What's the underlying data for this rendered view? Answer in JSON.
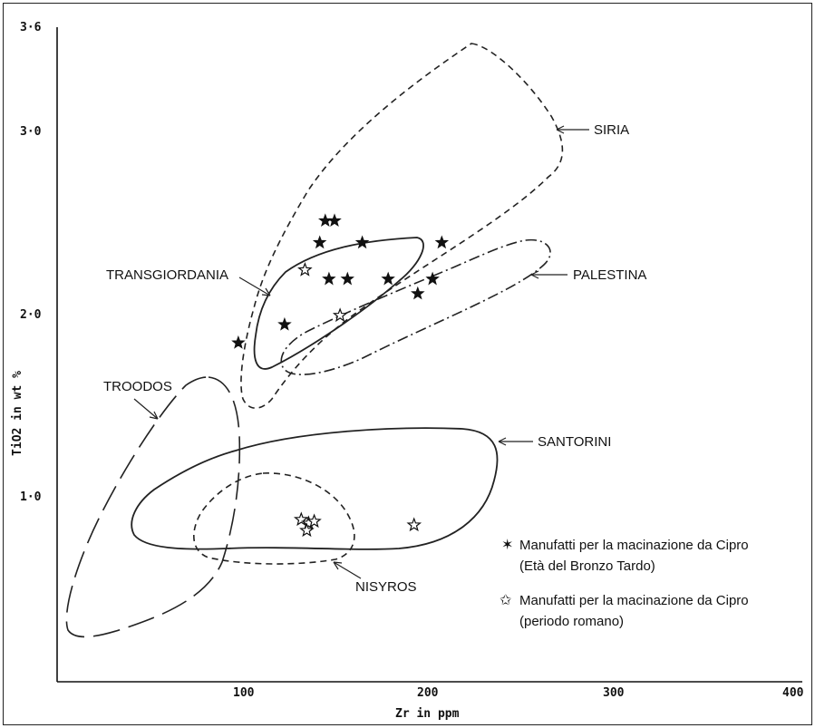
{
  "chart_data": {
    "type": "scatter",
    "xlabel": "Zr in ppm",
    "ylabel": "TiO2 in wt %",
    "xlim": [
      0,
      400
    ],
    "ylim": [
      0,
      3.6
    ],
    "x_ticks": [
      "100",
      "200",
      "300",
      "400"
    ],
    "y_ticks": [
      "1·0",
      "2·0",
      "3·0",
      "3·6"
    ],
    "y_tick_values": [
      1.0,
      2.0,
      3.0,
      3.6
    ],
    "x_tick_values": [
      100,
      200,
      300,
      400
    ],
    "regions": [
      {
        "label": "SIRIA",
        "line_style": "dashed"
      },
      {
        "label": "PALESTINA",
        "line_style": "dash-dot"
      },
      {
        "label": "TRANSGIORDANIA",
        "line_style": "solid"
      },
      {
        "label": "TROODOS",
        "line_style": "long-dash"
      },
      {
        "label": "SANTORINI",
        "line_style": "solid"
      },
      {
        "label": "NISYROS",
        "line_style": "dashed"
      }
    ],
    "series": [
      {
        "name": "Manufatti per la macinazione da Cipro (Età del Bronzo Tardo)",
        "marker": "filled-star",
        "points": [
          [
            145,
            2.53
          ],
          [
            150,
            2.53
          ],
          [
            142,
            2.41
          ],
          [
            165,
            2.41
          ],
          [
            208,
            2.41
          ],
          [
            147,
            2.21
          ],
          [
            157,
            2.21
          ],
          [
            179,
            2.21
          ],
          [
            203,
            2.21
          ],
          [
            195,
            2.13
          ],
          [
            123,
            1.96
          ],
          [
            98,
            1.86
          ]
        ]
      },
      {
        "name": "Manufatti per la macinazione da Cipro (periodo romano)",
        "marker": "open-star",
        "points": [
          [
            134,
            2.26
          ],
          [
            153,
            2.01
          ],
          [
            132,
            0.89
          ],
          [
            136,
            0.87
          ],
          [
            139,
            0.88
          ],
          [
            135,
            0.83
          ],
          [
            193,
            0.86
          ]
        ]
      }
    ],
    "legend": {
      "placement": "bottom-right",
      "entries": [
        {
          "marker": "filled-star",
          "line1": "Manufatti per la macinazione da Cipro",
          "line2": "(Età del Bronzo Tardo)"
        },
        {
          "marker": "open-star",
          "line1": "Manufatti per la macinazione da Cipro",
          "line2": "(periodo romano)"
        }
      ]
    },
    "grid": false
  }
}
